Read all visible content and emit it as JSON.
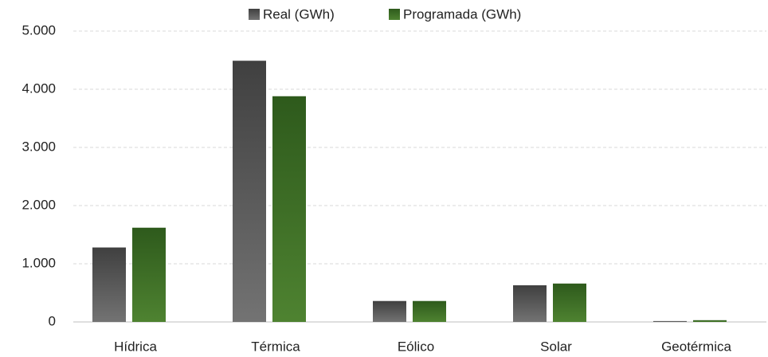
{
  "chart_data": {
    "type": "bar",
    "categories": [
      "Hídrica",
      "Térmica",
      "Eólico",
      "Solar",
      "Geotérmica"
    ],
    "series": [
      {
        "name": "Real (GWh)",
        "color": "#404040",
        "values": [
          1280,
          4490,
          360,
          630,
          15
        ]
      },
      {
        "name": "Programada (GWh)",
        "color": "#2e5a1c",
        "values": [
          1620,
          3880,
          360,
          660,
          30
        ]
      }
    ],
    "ylim": [
      0,
      5000
    ],
    "yticks": [
      0,
      {
        "value": 1000,
        "label": "1.000"
      },
      {
        "value": 2000,
        "label": "2.000"
      },
      {
        "value": 3000,
        "label": "3.000"
      },
      {
        "value": 4000,
        "label": "4.000"
      },
      {
        "value": 5000,
        "label": "5.000"
      }
    ],
    "grid": true,
    "legend": "top"
  }
}
